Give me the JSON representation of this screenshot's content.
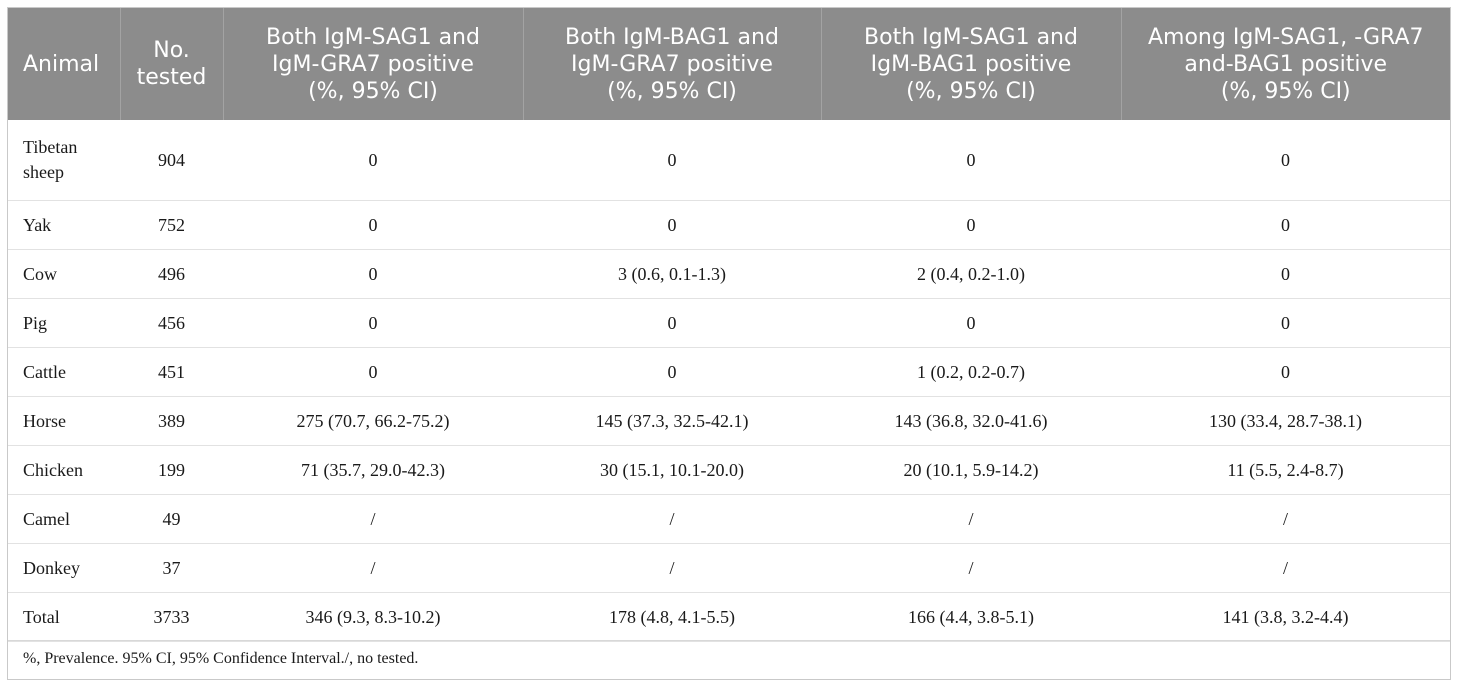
{
  "table": {
    "headers": [
      "Animal",
      "No. tested",
      "Both IgM-SAG1 and IgM-GRA7 positive (%, 95% CI)",
      "Both IgM-BAG1 and IgM-GRA7 positive (%, 95% CI)",
      "Both IgM-SAG1 and IgM-BAG1 positive (%, 95% CI)",
      "Among IgM-SAG1, -GRA7 and-BAG1 positive (%, 95% CI)"
    ],
    "header_lines": [
      [
        "Animal"
      ],
      [
        "No.",
        "tested"
      ],
      [
        "Both IgM-SAG1 and",
        "IgM-GRA7 positive",
        "(%, 95% CI)"
      ],
      [
        "Both IgM-BAG1 and",
        "IgM-GRA7 positive",
        "(%, 95% CI)"
      ],
      [
        "Both IgM-SAG1 and",
        "IgM-BAG1 positive",
        "(%, 95% CI)"
      ],
      [
        "Among IgM-SAG1, -GRA7",
        "and-BAG1 positive",
        "(%, 95% CI)"
      ]
    ],
    "rows": [
      [
        "Tibetan sheep",
        "904",
        "0",
        "0",
        "0",
        "0"
      ],
      [
        "Yak",
        "752",
        "0",
        "0",
        "0",
        "0"
      ],
      [
        "Cow",
        "496",
        "0",
        "3 (0.6, 0.1-1.3)",
        "2 (0.4, 0.2-1.0)",
        "0"
      ],
      [
        "Pig",
        "456",
        "0",
        "0",
        "0",
        "0"
      ],
      [
        "Cattle",
        "451",
        "0",
        "0",
        "1 (0.2, 0.2-0.7)",
        "0"
      ],
      [
        "Horse",
        "389",
        "275 (70.7, 66.2-75.2)",
        "145 (37.3, 32.5-42.1)",
        "143 (36.8, 32.0-41.6)",
        "130 (33.4, 28.7-38.1)"
      ],
      [
        "Chicken",
        "199",
        "71 (35.7, 29.0-42.3)",
        "30 (15.1, 10.1-20.0)",
        "20 (10.1, 5.9-14.2)",
        "11 (5.5, 2.4-8.7)"
      ],
      [
        "Camel",
        "49",
        "/",
        "/",
        "/",
        "/"
      ],
      [
        "Donkey",
        "37",
        "/",
        "/",
        "/",
        "/"
      ],
      [
        "Total",
        "3733",
        "346 (9.3, 8.3-10.2)",
        "178 (4.8, 4.1-5.5)",
        "166 (4.4, 3.8-5.1)",
        "141 (3.8, 3.2-4.4)"
      ]
    ]
  },
  "footnote": "%, Prevalence. 95% CI, 95% Confidence Interval./, no tested.",
  "colors": {
    "header_bg": "#8c8c8c",
    "header_text": "#ffffff",
    "body_text": "#1a1a1a",
    "row_divider": "#e2e2e2"
  }
}
